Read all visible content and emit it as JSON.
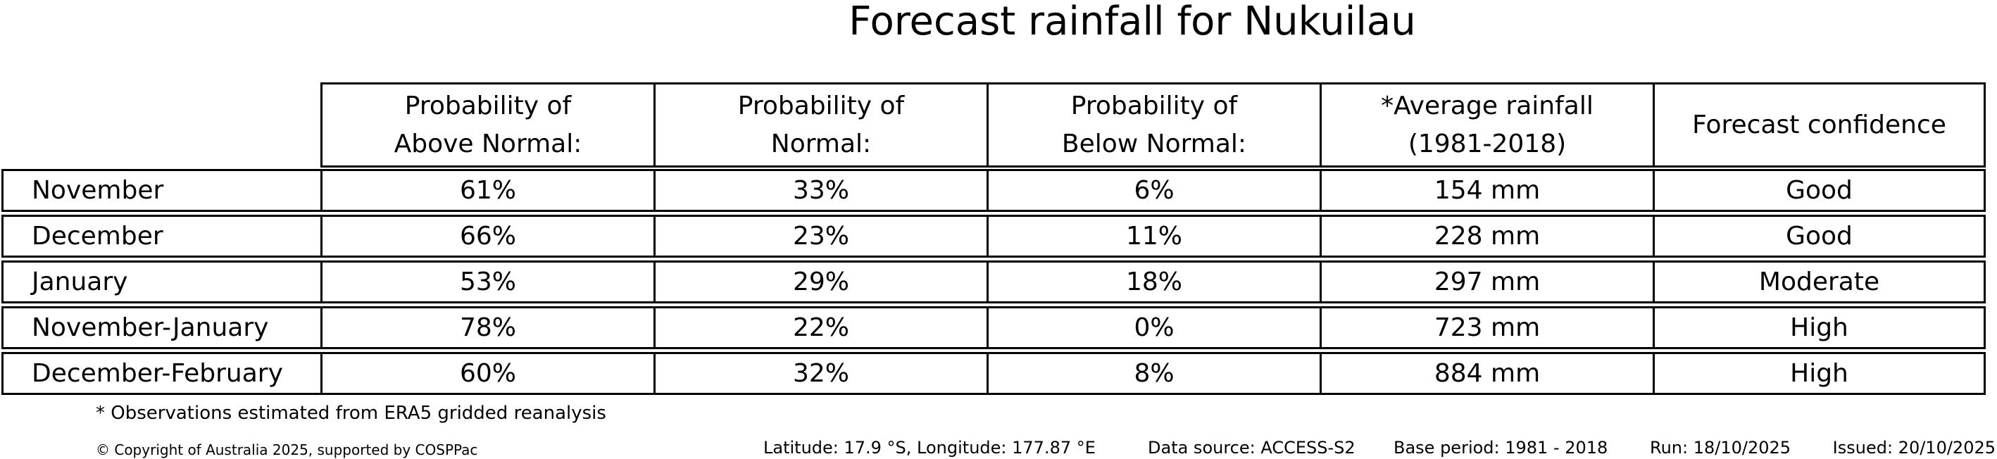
{
  "title": "Forecast rainfall for Nukuilau",
  "table": {
    "headers": [
      "Probability of\nAbove Normal:",
      "Probability of\nNormal:",
      "Probability of\nBelow Normal:",
      "*Average rainfall\n(1981-2018)",
      "Forecast confidence"
    ],
    "rows": [
      {
        "period": "November",
        "above_normal": "61%",
        "normal": "33%",
        "below_normal": "6%",
        "average_rainfall": "154 mm",
        "confidence": "Good"
      },
      {
        "period": "December",
        "above_normal": "66%",
        "normal": "23%",
        "below_normal": "11%",
        "average_rainfall": "228 mm",
        "confidence": "Good"
      },
      {
        "period": "January",
        "above_normal": "53%",
        "normal": "29%",
        "below_normal": "18%",
        "average_rainfall": "297 mm",
        "confidence": "Moderate"
      },
      {
        "period": "November-January",
        "above_normal": "78%",
        "normal": "22%",
        "below_normal": "0%",
        "average_rainfall": "723 mm",
        "confidence": "High"
      },
      {
        "period": "December-February",
        "above_normal": "60%",
        "normal": "32%",
        "below_normal": "8%",
        "average_rainfall": "884 mm",
        "confidence": "High"
      }
    ]
  },
  "footnote": "* Observations estimated from ERA5 gridded reanalysis",
  "footer": {
    "copyright": "© Copyright of Australia 2025, supported by COSPPac",
    "location": "Latitude: 17.9 °S, Longitude: 177.87 °E",
    "data_source": "Data source: ACCESS-S2",
    "base_period": "Base period: 1981 - 2018",
    "run": "Run: 18/10/2025",
    "issued": "Issued: 20/10/2025"
  },
  "colors": {
    "text": "#000000",
    "background": "#ffffff",
    "border": "#000000"
  },
  "chart_data": {
    "type": "table",
    "title": "Forecast rainfall for Nukuilau",
    "columns": [
      "",
      "Probability of Above Normal:",
      "Probability of Normal:",
      "Probability of Below Normal:",
      "*Average rainfall (1981-2018)",
      "Forecast confidence"
    ],
    "rows": [
      [
        "November",
        "61%",
        "33%",
        "6%",
        "154 mm",
        "Good"
      ],
      [
        "December",
        "66%",
        "23%",
        "11%",
        "228 mm",
        "Good"
      ],
      [
        "January",
        "53%",
        "29%",
        "18%",
        "297 mm",
        "Moderate"
      ],
      [
        "November-January",
        "78%",
        "22%",
        "0%",
        "723 mm",
        "High"
      ],
      [
        "December-February",
        "60%",
        "32%",
        "8%",
        "884 mm",
        "High"
      ]
    ],
    "footnote": "* Observations estimated from ERA5 gridded reanalysis",
    "legend_position": "none",
    "grid": true
  }
}
